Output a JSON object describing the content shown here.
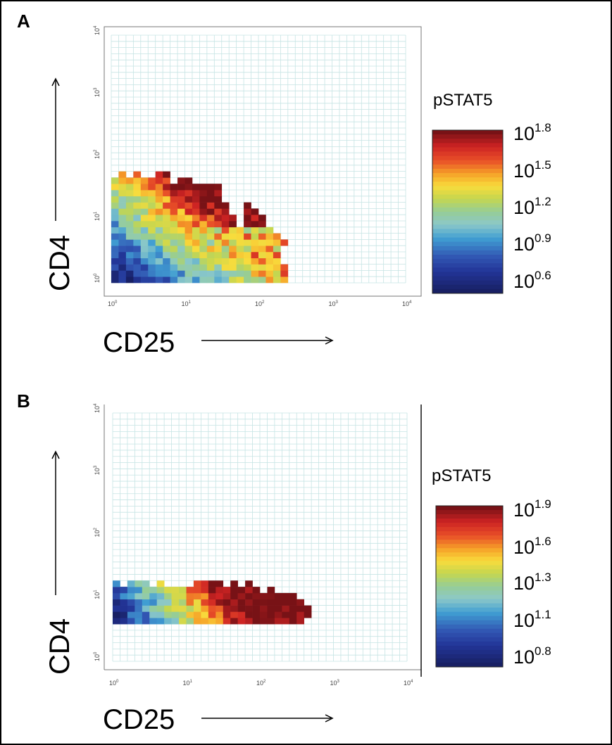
{
  "figure": {
    "bg": "#ffffff"
  },
  "chart_data": [
    {
      "panel_label": "A",
      "type": "heatmap",
      "xlabel": "CD25",
      "ylabel": "CD4",
      "x_scale": "log",
      "y_scale": "log",
      "xlim": [
        1,
        10000
      ],
      "ylim": [
        1,
        10000
      ],
      "x_ticks": [
        1,
        10,
        100,
        1000,
        10000
      ],
      "y_ticks": [
        1,
        10,
        100,
        1000,
        10000
      ],
      "tick_labels": {
        "base": "10",
        "exponents": [
          "0",
          "1",
          "2",
          "3",
          "4"
        ]
      },
      "grid": true,
      "grid_color": "#c6e4e4",
      "colorbar": {
        "title": "pSTAT5",
        "scale": "log",
        "range": [
          3.98,
          63.1
        ],
        "labels": [
          {
            "base": "10",
            "exp": "1.8"
          },
          {
            "base": "10",
            "exp": "1.5"
          },
          {
            "base": "10",
            "exp": "1.2"
          },
          {
            "base": "10",
            "exp": "0.9"
          },
          {
            "base": "10",
            "exp": "0.6"
          }
        ]
      },
      "populated_region": {
        "cd25_range": [
          1,
          170
        ],
        "cd4_range": [
          1,
          60
        ],
        "pstat5_trend": "low (about 10^0.6) at low CD25/low CD4, rising to high (about 10^1.8) at CD25 10^1-10^2 with CD4 near 10^1.5"
      }
    },
    {
      "panel_label": "B",
      "type": "heatmap",
      "xlabel": "CD25",
      "ylabel": "CD4",
      "x_scale": "log",
      "y_scale": "log",
      "xlim": [
        1,
        10000
      ],
      "ylim": [
        1,
        10000
      ],
      "x_ticks": [
        1,
        10,
        100,
        1000,
        10000
      ],
      "y_ticks": [
        1,
        10,
        100,
        1000,
        10000
      ],
      "tick_labels": {
        "base": "10",
        "exponents": [
          "0",
          "1",
          "2",
          "3",
          "4"
        ]
      },
      "grid": true,
      "grid_color": "#c6e4e4",
      "colorbar": {
        "title": "pSTAT5",
        "scale": "log",
        "range": [
          6.31,
          79.4
        ],
        "labels": [
          {
            "base": "10",
            "exp": "1.9"
          },
          {
            "base": "10",
            "exp": "1.6"
          },
          {
            "base": "10",
            "exp": "1.3"
          },
          {
            "base": "10",
            "exp": "1.1"
          },
          {
            "base": "10",
            "exp": "0.8"
          }
        ]
      },
      "populated_region": {
        "cd25_range": [
          1,
          300
        ],
        "cd4_range": [
          8,
          70
        ],
        "pstat5_trend": "low (about 10^0.8) at CD25 near 10^0, rising to high (about 10^1.9) at CD25 10^1-10^2.5"
      }
    }
  ]
}
